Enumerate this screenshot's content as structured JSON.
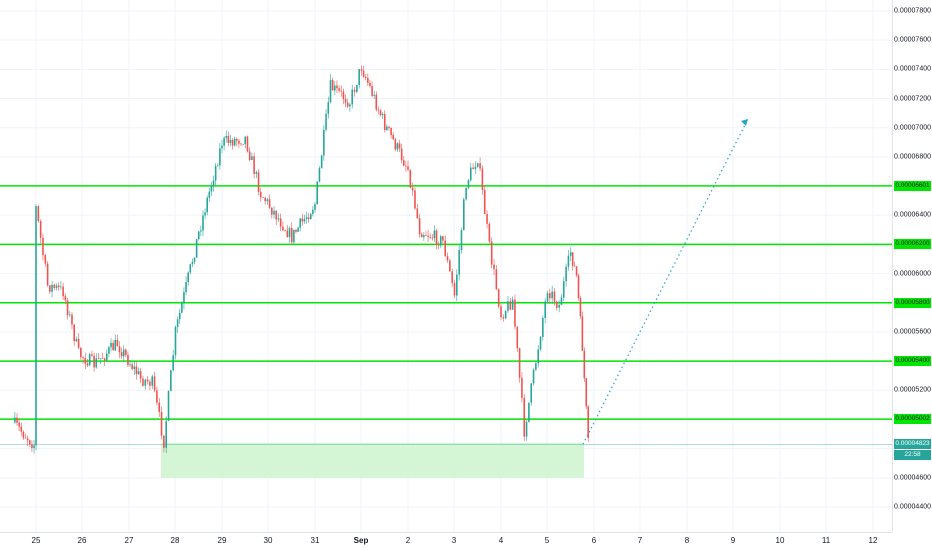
{
  "colors": {
    "up": "#26a69a",
    "down": "#ef5350",
    "level_line": "#00e600",
    "zone_fill": "#ccf5cc",
    "projection": "#26a6c8",
    "grid": "#f0f3fa"
  },
  "price_axis": {
    "ticks": [
      "0.00007800",
      "0.00007600",
      "0.00007400",
      "0.00007200",
      "0.00007000",
      "0.00006800",
      "0.00006400",
      "0.00006000",
      "0.00005600",
      "0.00005200",
      "0.00004600",
      "0.00004400"
    ],
    "level_labels": [
      "0.00006601",
      "0.00006200",
      "0.00005800",
      "0.00005400",
      "0.00005002"
    ],
    "last_price": "0.00004823",
    "countdown": "22:58"
  },
  "time_axis": {
    "labels": [
      "25",
      "26",
      "27",
      "28",
      "29",
      "30",
      "31",
      "Sep",
      "2",
      "3",
      "4",
      "5",
      "6",
      "7",
      "8",
      "9",
      "10",
      "11",
      "12"
    ]
  },
  "chart_data": {
    "type": "candlestick",
    "symbol_unit": "price",
    "ylim": [
      4.3e-05,
      7.92e-05
    ],
    "horizontal_levels": [
      6.601e-05,
      6.2e-05,
      5.8e-05,
      5.4e-05,
      5.002e-05
    ],
    "support_zone": {
      "from": "Aug 27 ~15:00",
      "to": "Sep 5 ~18:00",
      "low": 4.6e-05,
      "high": 4.84e-05
    },
    "projection_arrow": {
      "from_price": 4.83e-05,
      "to_price": 7.06e-05,
      "to_date": "Sep 9"
    },
    "x_categories": [
      "25",
      "26",
      "27",
      "28",
      "29",
      "30",
      "31",
      "Sep",
      "2",
      "3",
      "4",
      "5"
    ],
    "close_path": [
      {
        "x": "Aug 24 12:00",
        "y": 4.98e-05
      },
      {
        "x": "Aug 24 23:00",
        "y": 4.83e-05
      },
      {
        "x": "Aug 25 00:00",
        "y": 6.45e-05
      },
      {
        "x": "Aug 25 06:00",
        "y": 5.92e-05
      },
      {
        "x": "Aug 25 14:00",
        "y": 5.88e-05
      },
      {
        "x": "Aug 25 22:00",
        "y": 5.45e-05
      },
      {
        "x": "Aug 26 06:00",
        "y": 5.38e-05
      },
      {
        "x": "Aug 26 18:00",
        "y": 5.52e-05
      },
      {
        "x": "Aug 27 06:00",
        "y": 5.28e-05
      },
      {
        "x": "Aug 27 12:00",
        "y": 5.25e-05
      },
      {
        "x": "Aug 27 18:00",
        "y": 4.85e-05
      },
      {
        "x": "Aug 28 00:00",
        "y": 5.6e-05
      },
      {
        "x": "Aug 28 12:00",
        "y": 6.28e-05
      },
      {
        "x": "Aug 29 00:00",
        "y": 6.9e-05
      },
      {
        "x": "Aug 29 12:00",
        "y": 6.93e-05
      },
      {
        "x": "Aug 29 20:00",
        "y": 6.55e-05
      },
      {
        "x": "Aug 30 12:00",
        "y": 6.25e-05
      },
      {
        "x": "Aug 31 00:00",
        "y": 6.48e-05
      },
      {
        "x": "Aug 31 08:00",
        "y": 7.28e-05
      },
      {
        "x": "Aug 31 18:00",
        "y": 7.18e-05
      },
      {
        "x": "Sep 1 00:00",
        "y": 7.42e-05
      },
      {
        "x": "Sep 1 12:00",
        "y": 7.02e-05
      },
      {
        "x": "Sep 2 00:00",
        "y": 6.72e-05
      },
      {
        "x": "Sep 2 06:00",
        "y": 6.3e-05
      },
      {
        "x": "Sep 2 18:00",
        "y": 6.22e-05
      },
      {
        "x": "Sep 3 00:00",
        "y": 5.85e-05
      },
      {
        "x": "Sep 3 06:00",
        "y": 6.62e-05
      },
      {
        "x": "Sep 3 12:00",
        "y": 6.8e-05
      },
      {
        "x": "Sep 3 18:00",
        "y": 6.18e-05
      },
      {
        "x": "Sep 4 00:00",
        "y": 5.72e-05
      },
      {
        "x": "Sep 4 06:00",
        "y": 5.82e-05
      },
      {
        "x": "Sep 4 12:00",
        "y": 4.92e-05
      },
      {
        "x": "Sep 4 18:00",
        "y": 5.4e-05
      },
      {
        "x": "Sep 5 00:00",
        "y": 5.9e-05
      },
      {
        "x": "Sep 5 06:00",
        "y": 5.78e-05
      },
      {
        "x": "Sep 5 12:00",
        "y": 6.15e-05
      },
      {
        "x": "Sep 5 15:00",
        "y": 5.98e-05
      },
      {
        "x": "Sep 5 18:00",
        "y": 5.5e-05
      },
      {
        "x": "Sep 5 21:00",
        "y": 4.83e-05
      }
    ]
  }
}
